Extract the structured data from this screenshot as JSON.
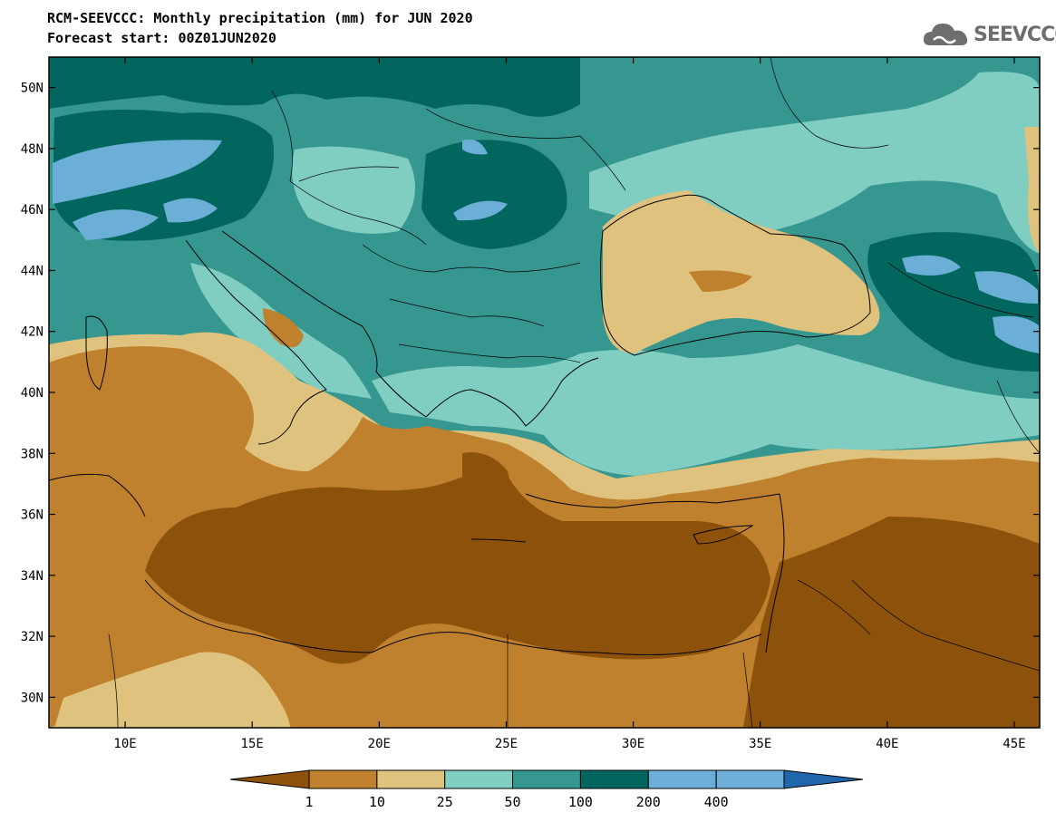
{
  "header": {
    "title_line1": "RCM-SEEVCCC: Monthly precipitation (mm) for JUN 2020",
    "title_line2": "Forecast start: 00Z01JUN2020"
  },
  "logo": {
    "text": "SEEVCCC",
    "icon": "cloud-icon"
  },
  "map": {
    "lon_ticks": [
      "10E",
      "15E",
      "20E",
      "25E",
      "30E",
      "35E",
      "40E",
      "45E"
    ],
    "lat_ticks": [
      "50N",
      "48N",
      "46N",
      "44N",
      "42N",
      "40N",
      "38N",
      "36N",
      "34N",
      "32N",
      "30N"
    ],
    "lon_range": [
      7,
      46
    ],
    "lat_range": [
      29,
      51
    ]
  },
  "colorbar": {
    "levels": [
      "1",
      "10",
      "25",
      "50",
      "100",
      "200",
      "400"
    ],
    "colors": {
      "lt1": "#8c510a",
      "1-10": "#bf812d",
      "10-25": "#dfc27d",
      "25-50": "#80cdc1",
      "50-100": "#35978f",
      "100-200": "#01665e",
      "200-400": "#6baed6",
      "gt400": "#2166ac"
    }
  }
}
